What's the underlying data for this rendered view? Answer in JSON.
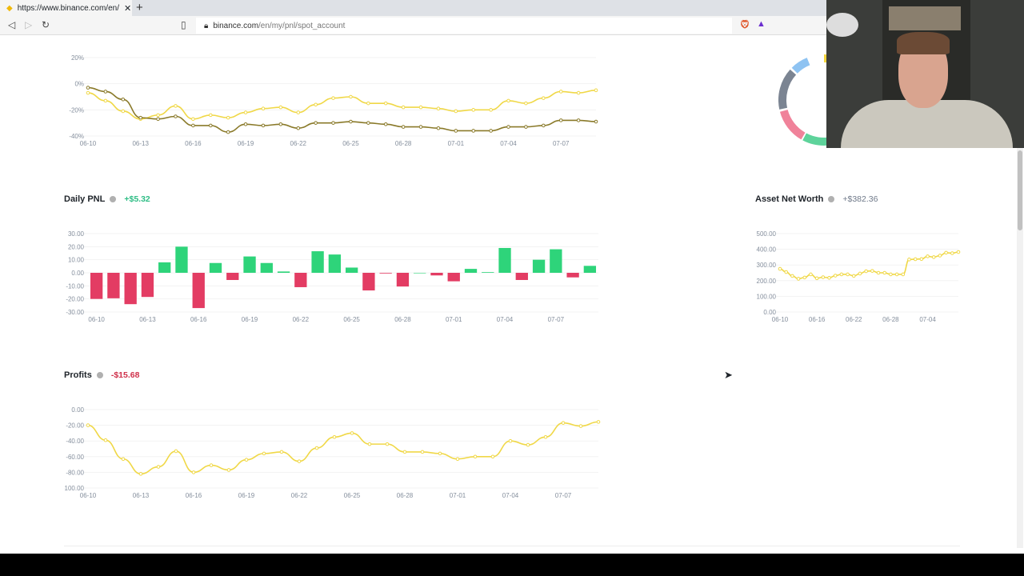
{
  "browser": {
    "tab_title": "https://www.binance.com/en/",
    "url_host": "binance.com",
    "url_path": "/en/my/pnl/spot_account"
  },
  "colors": {
    "yellow": "#f0d847",
    "olive": "#8a7a2a",
    "green": "#2ed47a",
    "red": "#e33c63",
    "donut": [
      "#f5d63d",
      "#1e6fe0",
      "#5ed39b",
      "#f0829a",
      "#7b8492",
      "#8ec3f2"
    ]
  },
  "daily_pnl": {
    "title": "Daily PNL",
    "value": "+$5.32"
  },
  "asset_net_worth": {
    "title": "Asset Net Worth",
    "value": "+$382.36"
  },
  "profits": {
    "title": "Profits",
    "value": "-$15.68"
  },
  "chart_data": [
    {
      "type": "line",
      "yticks": [
        "20%",
        "0%",
        "-20%",
        "-40%"
      ],
      "ylim": [
        -40,
        20
      ],
      "xticks": [
        "06-10",
        "06-13",
        "06-16",
        "06-19",
        "06-22",
        "06-25",
        "06-28",
        "07-01",
        "07-04",
        "07-07"
      ],
      "series": [
        {
          "values": [
            -7,
            -13,
            -21,
            -27,
            -24,
            -17,
            -27,
            -24,
            -26,
            -22,
            -19,
            -18,
            -22,
            -16,
            -11,
            -10,
            -15,
            -15,
            -18,
            -18,
            -19,
            -21,
            -20,
            -20,
            -13,
            -15,
            -11,
            -6,
            -7,
            -5
          ]
        },
        {
          "values": [
            -3,
            -6,
            -12,
            -26,
            -27,
            -25,
            -32,
            -32,
            -37,
            -31,
            -32,
            -31,
            -34,
            -30,
            -30,
            -29,
            -30,
            -31,
            -33,
            -33,
            -34,
            -36,
            -36,
            -36,
            -33,
            -33,
            -32,
            -28,
            -28,
            -29
          ]
        }
      ]
    },
    {
      "type": "bar",
      "yticks": [
        "30.00",
        "20.00",
        "10.00",
        "0.00",
        "-10.00",
        "-20.00",
        "-30.00"
      ],
      "ylim": [
        -30,
        30
      ],
      "xticks": [
        "06-10",
        "06-13",
        "06-16",
        "06-19",
        "06-22",
        "06-25",
        "06-28",
        "07-01",
        "07-04",
        "07-07"
      ],
      "values": [
        -20,
        -19.5,
        -24,
        -18.5,
        8,
        20,
        -27,
        7.5,
        -5.5,
        12.5,
        7.5,
        1,
        -11,
        16.5,
        14,
        4,
        -13.5,
        -0.5,
        -10.5,
        0,
        -2,
        -6.5,
        3,
        0.5,
        19,
        -5.5,
        10,
        18,
        -3.5,
        5.32
      ]
    },
    {
      "type": "line",
      "yticks": [
        "500.00",
        "400.00",
        "300.00",
        "200.00",
        "100.00",
        "0.00"
      ],
      "ylim": [
        0,
        500
      ],
      "xticks": [
        "06-10",
        "06-16",
        "06-22",
        "06-28",
        "07-04"
      ],
      "series": [
        {
          "values": [
            275,
            255,
            230,
            212,
            220,
            240,
            215,
            222,
            218,
            232,
            240,
            240,
            230,
            245,
            260,
            262,
            250,
            250,
            240,
            240,
            240,
            335,
            337,
            338,
            355,
            350,
            360,
            378,
            375,
            382.36
          ]
        }
      ]
    },
    {
      "type": "line",
      "yticks": [
        "0.00",
        "-20.00",
        "-40.00",
        "-60.00",
        "-80.00",
        "-100.00"
      ],
      "ylim": [
        -100,
        0
      ],
      "xticks": [
        "06-10",
        "06-13",
        "06-16",
        "06-19",
        "06-22",
        "06-25",
        "06-28",
        "07-01",
        "07-04",
        "07-07"
      ],
      "series": [
        {
          "values": [
            -20,
            -39,
            -63,
            -82,
            -73,
            -53,
            -80,
            -71,
            -77,
            -64,
            -56,
            -54,
            -66,
            -49,
            -35,
            -30,
            -44,
            -44,
            -54,
            -54,
            -56,
            -63,
            -60,
            -60,
            -40,
            -45,
            -35,
            -17,
            -21,
            -15.68
          ]
        }
      ]
    }
  ]
}
